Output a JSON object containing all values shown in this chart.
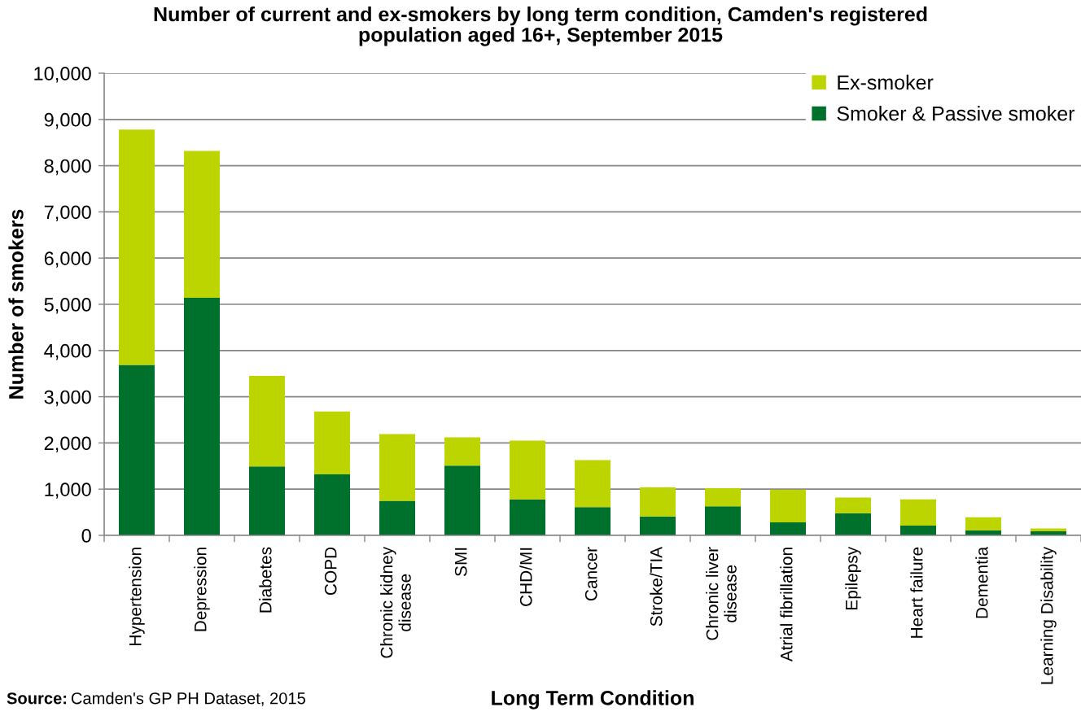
{
  "chart_data": {
    "type": "bar",
    "stacked": true,
    "title": "Number of current and ex-smokers by long term condition, Camden's registered population aged 16+, September 2015",
    "xlabel": "Long Term Condition",
    "ylabel": "Number of smokers",
    "categories": [
      "Hypertension",
      "Depression",
      "Diabetes",
      "COPD",
      "Chronic kidney disease",
      "SMI",
      "CHD/MI",
      "Cancer",
      "Stroke/TIA",
      "Chronic liver disease",
      "Atrial fibrillation",
      "Epilepsy",
      "Heart failure",
      "Dementia",
      "Learning Disability"
    ],
    "series": [
      {
        "name": "Smoker & Passive smoker",
        "color": "#00712c",
        "values": [
          3690,
          5140,
          1490,
          1320,
          750,
          1510,
          780,
          610,
          410,
          630,
          280,
          480,
          210,
          110,
          90
        ]
      },
      {
        "name": "Ex-smoker",
        "color": "#bcd400",
        "values": [
          5090,
          3180,
          1960,
          1360,
          1440,
          610,
          1270,
          1020,
          630,
          390,
          710,
          340,
          570,
          280,
          60
        ]
      }
    ],
    "ylim": [
      0,
      10000
    ],
    "yticks": [
      0,
      {
        "value": 1000,
        "label": "1,000"
      },
      {
        "value": 2000,
        "label": "2,000"
      },
      {
        "value": 3000,
        "label": "3,000"
      },
      {
        "value": 4000,
        "label": "4,000"
      },
      {
        "value": 5000,
        "label": "5,000"
      },
      {
        "value": 6000,
        "label": "6,000"
      },
      {
        "value": 7000,
        "label": "7,000"
      },
      {
        "value": 8000,
        "label": "8,000"
      },
      {
        "value": 9000,
        "label": "9,000"
      },
      {
        "value": 10000,
        "label": "10,000"
      }
    ],
    "grid": "y",
    "legend": "top right",
    "annotations": [
      "Source: Camden's GP PH Dataset, 2015"
    ]
  }
}
